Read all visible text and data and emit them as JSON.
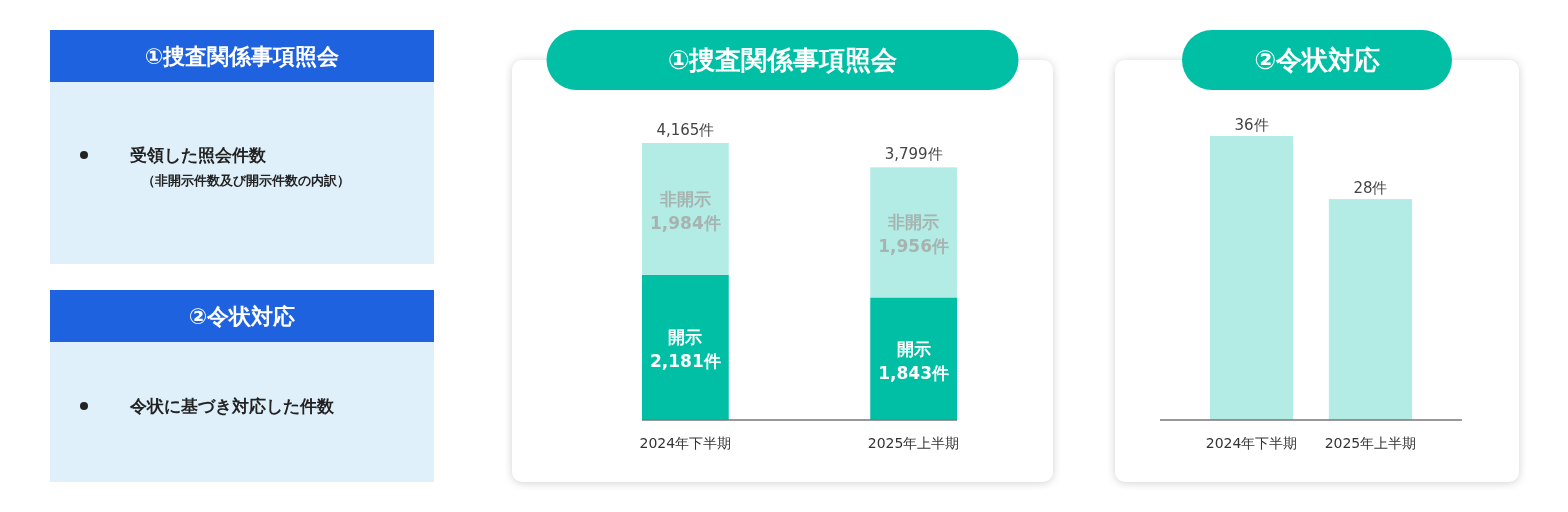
{
  "chart_data": [
    {
      "type": "other",
      "title": "①捜査関係事項照会",
      "annotations": [
        "受領した照会件数",
        "（非開示件数及び開示件数の内訳）"
      ]
    },
    {
      "type": "other",
      "title": "②令状対応",
      "annotations": [
        "令状に基づき対応した件数"
      ]
    },
    {
      "type": "bar",
      "stacked": true,
      "title": "①捜査関係事項照会",
      "categories": [
        "2024年下半期",
        "2025年上半期"
      ],
      "series": [
        {
          "name": "開示",
          "color": "#00bfa5",
          "values": [
            2181,
            1843
          ],
          "value_labels": [
            "2,181件",
            "1,843件"
          ]
        },
        {
          "name": "非開示",
          "color": "#b3ebe5",
          "values": [
            1984,
            1956
          ],
          "value_labels": [
            "1,984件",
            "1,956件"
          ]
        }
      ],
      "totals": [
        "4,165件",
        "3,799件"
      ]
    },
    {
      "type": "bar",
      "title": "②令状対応",
      "categories": [
        "2024年下半期",
        "2025年上半期"
      ],
      "color": "#b3ebe5",
      "values": [
        36,
        28
      ],
      "value_labels": [
        "36件",
        "28件"
      ]
    }
  ]
}
